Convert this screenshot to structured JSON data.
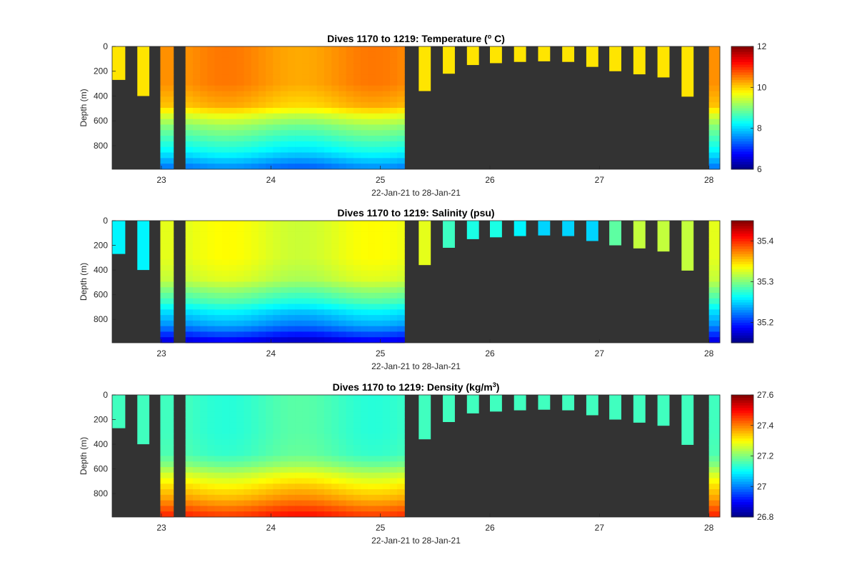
{
  "chart_data": [
    {
      "type": "heatmap",
      "title_main": "Dives 1170 to 1219: Temperature (",
      "title_sup": "o",
      "title_tail": " C)",
      "xlabel": "22-Jan-21 to 28-Jan-21",
      "ylabel": "Depth (m)",
      "xlim": [
        22.55,
        28.1
      ],
      "ylim": [
        0,
        990
      ],
      "y_reversed": true,
      "xticks": [
        23,
        24,
        25,
        26,
        27,
        28
      ],
      "yticks": [
        0,
        200,
        400,
        600,
        800
      ],
      "colorbar": {
        "colormap": "jet",
        "range": [
          6,
          12
        ],
        "ticks": [
          6,
          8,
          10,
          12
        ]
      }
    },
    {
      "type": "heatmap",
      "title_main": "Dives 1170 to 1219: Salinity (psu)",
      "title_sup": "",
      "title_tail": "",
      "xlabel": "22-Jan-21 to 28-Jan-21",
      "ylabel": "Depth (m)",
      "xlim": [
        22.55,
        28.1
      ],
      "ylim": [
        0,
        990
      ],
      "y_reversed": true,
      "xticks": [
        23,
        24,
        25,
        26,
        27,
        28
      ],
      "yticks": [
        0,
        200,
        400,
        600,
        800
      ],
      "colorbar": {
        "colormap": "jet",
        "range": [
          35.15,
          35.45
        ],
        "ticks": [
          35.2,
          35.3,
          35.4
        ]
      }
    },
    {
      "type": "heatmap",
      "title_main": "Dives 1170 to 1219: Density (kg/m",
      "title_sup": "3",
      "title_tail": ")",
      "xlabel": "22-Jan-21 to 28-Jan-21",
      "ylabel": "Depth (m)",
      "xlim": [
        22.55,
        28.1
      ],
      "ylim": [
        0,
        990
      ],
      "y_reversed": true,
      "xticks": [
        23,
        24,
        25,
        26,
        27,
        28
      ],
      "yticks": [
        0,
        200,
        400,
        600,
        800
      ],
      "colorbar": {
        "colormap": "jet",
        "range": [
          26.8,
          27.6
        ],
        "ticks": [
          26.8,
          27,
          27.2,
          27.4,
          27.6
        ]
      }
    }
  ],
  "profiles": {
    "shallow_dives": [
      {
        "x0": 22.55,
        "x1": 22.67,
        "depth": 270,
        "temp": 9.9,
        "sal": 35.26,
        "dens": 27.15
      },
      {
        "x0": 22.78,
        "x1": 22.89,
        "depth": 400,
        "temp": 9.9,
        "sal": 35.26,
        "dens": 27.15
      },
      {
        "x0": 25.35,
        "x1": 25.46,
        "depth": 360,
        "temp": 9.9,
        "sal": 35.33,
        "dens": 27.15
      },
      {
        "x0": 25.57,
        "x1": 25.68,
        "depth": 220,
        "temp": 9.9,
        "sal": 35.28,
        "dens": 27.15
      },
      {
        "x0": 25.79,
        "x1": 25.9,
        "depth": 150,
        "temp": 9.9,
        "sal": 35.27,
        "dens": 27.15
      },
      {
        "x0": 26.0,
        "x1": 26.11,
        "depth": 135,
        "temp": 9.9,
        "sal": 35.27,
        "dens": 27.15
      },
      {
        "x0": 26.22,
        "x1": 26.33,
        "depth": 125,
        "temp": 9.9,
        "sal": 35.26,
        "dens": 27.15
      },
      {
        "x0": 26.44,
        "x1": 26.55,
        "depth": 120,
        "temp": 9.9,
        "sal": 35.25,
        "dens": 27.15
      },
      {
        "x0": 26.66,
        "x1": 26.77,
        "depth": 125,
        "temp": 9.9,
        "sal": 35.25,
        "dens": 27.15
      },
      {
        "x0": 26.88,
        "x1": 26.99,
        "depth": 165,
        "temp": 9.9,
        "sal": 35.25,
        "dens": 27.15
      },
      {
        "x0": 27.09,
        "x1": 27.2,
        "depth": 200,
        "temp": 9.9,
        "sal": 35.29,
        "dens": 27.15
      },
      {
        "x0": 27.31,
        "x1": 27.42,
        "depth": 225,
        "temp": 9.9,
        "sal": 35.32,
        "dens": 27.15
      },
      {
        "x0": 27.53,
        "x1": 27.64,
        "depth": 250,
        "temp": 9.9,
        "sal": 35.32,
        "dens": 27.15
      },
      {
        "x0": 27.75,
        "x1": 27.86,
        "depth": 405,
        "temp": 9.9,
        "sal": 35.32,
        "dens": 27.15
      }
    ],
    "deep_dives": [
      {
        "x0": 22.99,
        "x1": 23.11
      },
      {
        "x0": 28.0,
        "x1": 28.1
      }
    ],
    "deep_block": {
      "x0": 23.22,
      "x1": 25.22,
      "cols": 30
    },
    "deep_profile": {
      "depth": [
        0,
        300,
        480,
        560,
        650,
        750,
        850,
        950,
        990
      ],
      "temp": [
        10.4,
        10.4,
        10.1,
        9.5,
        9.0,
        8.6,
        8.2,
        7.6,
        7.4
      ],
      "sal": [
        35.33,
        35.33,
        35.32,
        35.3,
        35.28,
        35.25,
        35.23,
        35.19,
        35.17
      ],
      "dens": [
        27.15,
        27.15,
        27.16,
        27.2,
        27.27,
        27.33,
        27.38,
        27.45,
        27.48
      ]
    },
    "fill_color": "#333333"
  }
}
